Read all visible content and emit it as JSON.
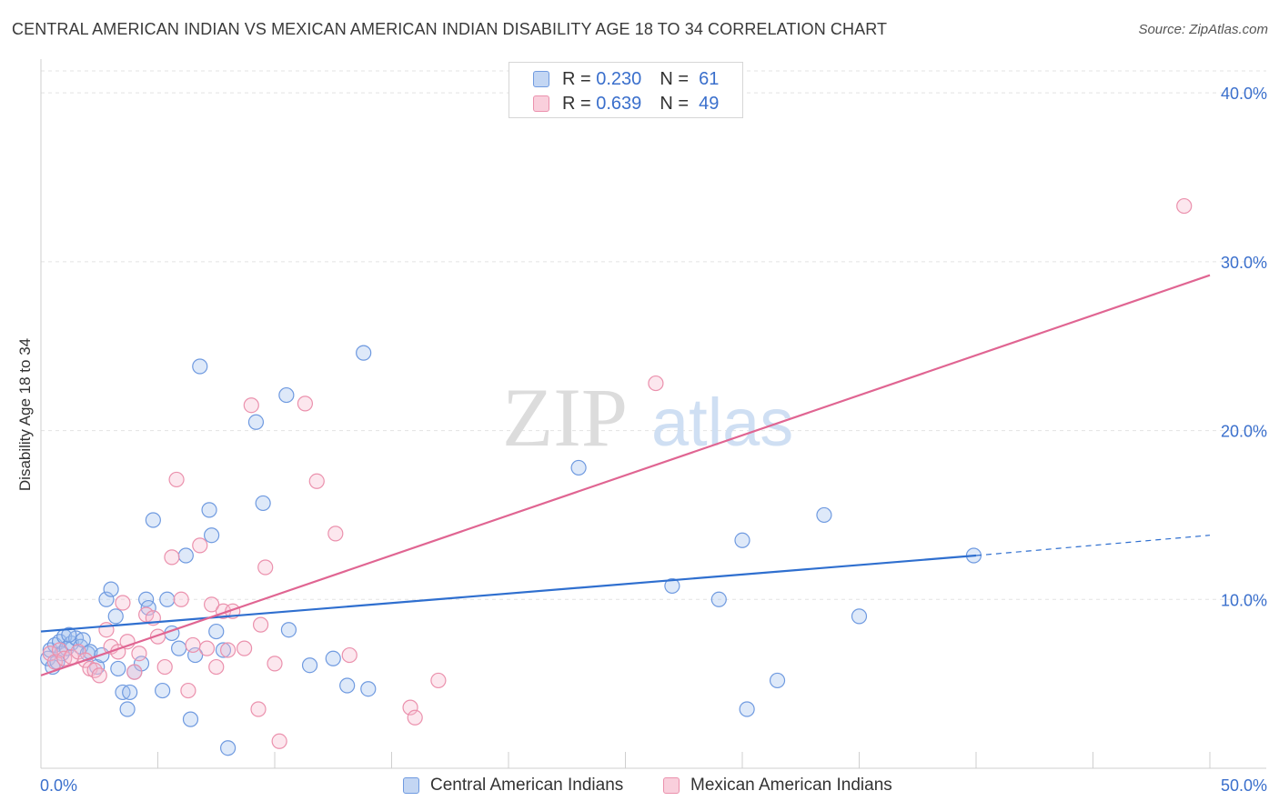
{
  "title": "CENTRAL AMERICAN INDIAN VS MEXICAN AMERICAN INDIAN DISABILITY AGE 18 TO 34 CORRELATION CHART",
  "source": "Source: ZipAtlas.com",
  "watermark": {
    "zip": "ZIP",
    "atlas": "atlas"
  },
  "legend": [
    {
      "r_label": "R =",
      "r": "0.230",
      "n_label": "N =",
      "n": "61",
      "color": "#6f9ae0"
    },
    {
      "r_label": "R =",
      "r": "0.639",
      "n_label": "N =",
      "n": "49",
      "color": "#eb91ad"
    }
  ],
  "bottom_legend": [
    "Central American Indians",
    "Mexican American Indians"
  ],
  "chart_data": {
    "type": "scatter",
    "title": "CENTRAL AMERICAN INDIAN VS MEXICAN AMERICAN INDIAN DISABILITY AGE 18 TO 34 CORRELATION CHART",
    "xlabel": "",
    "ylabel": "Disability Age 18 to 34",
    "xlim": [
      0,
      50
    ],
    "ylim": [
      0,
      42
    ],
    "x_tick_labels": [
      "0.0%",
      "50.0%"
    ],
    "y_ticks": [
      10,
      20,
      30,
      40
    ],
    "y_tick_labels": [
      "10.0%",
      "20.0%",
      "30.0%",
      "40.0%"
    ],
    "grid": true,
    "series": [
      {
        "name": "Central American Indians",
        "color": "#6f9ae0",
        "fill": "rgba(160,192,238,0.35)",
        "line_color": "#2f6fcf",
        "trend": {
          "x0": 0,
          "y0": 8.1,
          "x1": 40,
          "y1": 12.6,
          "dash_to": 50,
          "dash_y": 13.8
        },
        "points": [
          [
            0.3,
            6.5
          ],
          [
            0.4,
            7.0
          ],
          [
            0.5,
            6.0
          ],
          [
            0.6,
            7.3
          ],
          [
            0.8,
            7.5
          ],
          [
            0.9,
            6.8
          ],
          [
            1.0,
            7.8
          ],
          [
            1.1,
            7.1
          ],
          [
            1.3,
            7.4
          ],
          [
            1.5,
            7.7
          ],
          [
            1.7,
            7.2
          ],
          [
            1.8,
            7.6
          ],
          [
            2.0,
            6.8
          ],
          [
            2.1,
            6.9
          ],
          [
            2.4,
            6.0
          ],
          [
            2.6,
            6.7
          ],
          [
            2.8,
            10.0
          ],
          [
            3.0,
            10.6
          ],
          [
            3.2,
            9.0
          ],
          [
            3.5,
            4.5
          ],
          [
            3.7,
            3.5
          ],
          [
            3.8,
            4.5
          ],
          [
            4.0,
            5.7
          ],
          [
            4.3,
            6.2
          ],
          [
            4.5,
            10.0
          ],
          [
            4.6,
            9.5
          ],
          [
            4.8,
            14.7
          ],
          [
            5.2,
            4.6
          ],
          [
            5.4,
            10.0
          ],
          [
            5.6,
            8.0
          ],
          [
            5.9,
            7.1
          ],
          [
            6.2,
            12.6
          ],
          [
            6.4,
            2.9
          ],
          [
            6.6,
            6.7
          ],
          [
            6.8,
            23.8
          ],
          [
            7.2,
            15.3
          ],
          [
            7.3,
            13.8
          ],
          [
            7.5,
            8.1
          ],
          [
            7.8,
            7.0
          ],
          [
            8.0,
            1.2
          ],
          [
            9.2,
            20.5
          ],
          [
            9.5,
            15.7
          ],
          [
            10.5,
            22.1
          ],
          [
            10.6,
            8.2
          ],
          [
            11.5,
            6.1
          ],
          [
            12.5,
            6.5
          ],
          [
            13.1,
            4.9
          ],
          [
            13.8,
            24.6
          ],
          [
            14.0,
            4.7
          ],
          [
            23.0,
            17.8
          ],
          [
            27.0,
            10.8
          ],
          [
            29.0,
            10.0
          ],
          [
            30.0,
            13.5
          ],
          [
            30.2,
            3.5
          ],
          [
            31.5,
            5.2
          ],
          [
            33.5,
            15.0
          ],
          [
            35.0,
            9.0
          ],
          [
            39.9,
            12.6
          ],
          [
            0.7,
            6.3
          ],
          [
            1.2,
            7.9
          ],
          [
            3.3,
            5.9
          ]
        ]
      },
      {
        "name": "Mexican American Indians",
        "color": "#eb91ad",
        "fill": "rgba(246,186,206,0.35)",
        "line_color": "#e06592",
        "trend": {
          "x0": 0,
          "y0": 5.5,
          "x1": 50,
          "y1": 29.2
        },
        "points": [
          [
            0.4,
            6.8
          ],
          [
            0.6,
            6.3
          ],
          [
            0.8,
            7.0
          ],
          [
            1.0,
            6.5
          ],
          [
            1.3,
            6.6
          ],
          [
            1.6,
            6.9
          ],
          [
            1.9,
            6.4
          ],
          [
            2.1,
            5.9
          ],
          [
            2.3,
            5.8
          ],
          [
            2.5,
            5.5
          ],
          [
            2.8,
            8.2
          ],
          [
            3.0,
            7.2
          ],
          [
            3.3,
            6.9
          ],
          [
            3.5,
            9.8
          ],
          [
            3.7,
            7.5
          ],
          [
            4.0,
            5.7
          ],
          [
            4.2,
            6.8
          ],
          [
            4.5,
            9.1
          ],
          [
            4.8,
            8.9
          ],
          [
            5.0,
            7.8
          ],
          [
            5.3,
            6.0
          ],
          [
            5.6,
            12.5
          ],
          [
            5.8,
            17.1
          ],
          [
            6.0,
            10.0
          ],
          [
            6.3,
            4.6
          ],
          [
            6.5,
            7.3
          ],
          [
            6.8,
            13.2
          ],
          [
            7.1,
            7.1
          ],
          [
            7.3,
            9.7
          ],
          [
            7.5,
            6.0
          ],
          [
            7.8,
            9.3
          ],
          [
            8.0,
            7.0
          ],
          [
            8.2,
            9.3
          ],
          [
            8.7,
            7.1
          ],
          [
            9.0,
            21.5
          ],
          [
            9.3,
            3.5
          ],
          [
            9.4,
            8.5
          ],
          [
            9.6,
            11.9
          ],
          [
            10.0,
            6.2
          ],
          [
            10.2,
            1.6
          ],
          [
            11.3,
            21.6
          ],
          [
            11.8,
            17.0
          ],
          [
            12.6,
            13.9
          ],
          [
            13.2,
            6.7
          ],
          [
            15.8,
            3.6
          ],
          [
            16.0,
            3.0
          ],
          [
            17.0,
            5.2
          ],
          [
            26.3,
            22.8
          ],
          [
            48.9,
            33.3
          ]
        ]
      }
    ]
  }
}
